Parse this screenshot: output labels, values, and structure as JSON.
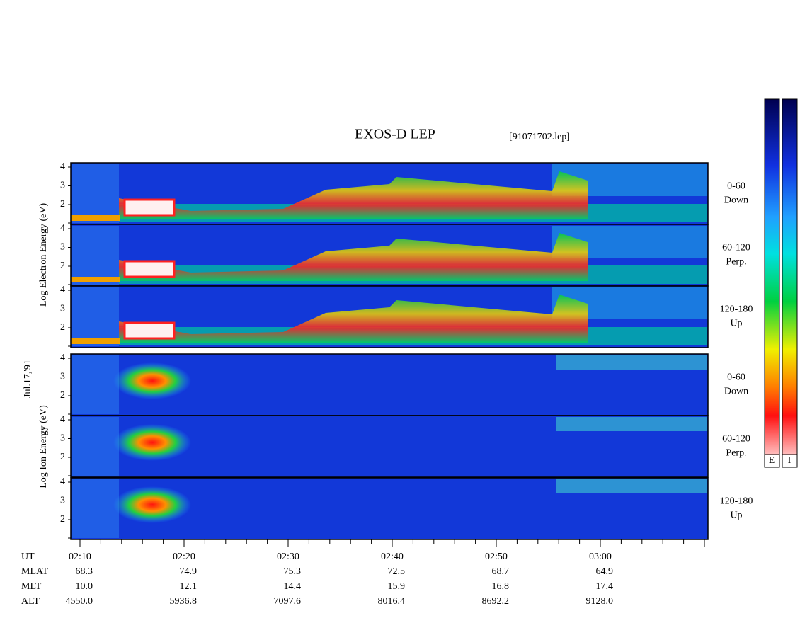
{
  "header": {
    "title": "EXOS-D LEP",
    "file": "[91071702.lep]"
  },
  "date": "Jul.17,'91",
  "electron_axis_label": "Log Electron Energy (eV)",
  "ion_axis_label": "Log Ion Energy (eV)",
  "y_tick_labels": [
    4,
    3,
    2
  ],
  "panels": [
    {
      "angle": "0-60",
      "direction": "Down"
    },
    {
      "angle": "60-120",
      "direction": "Perp."
    },
    {
      "angle": "120-180",
      "direction": "Up"
    },
    {
      "angle": "0-60",
      "direction": "Down"
    },
    {
      "angle": "60-120",
      "direction": "Perp."
    },
    {
      "angle": "120-180",
      "direction": "Up"
    }
  ],
  "ephemeris": {
    "row_labels": [
      "UT",
      "MLAT",
      "MLT",
      "ALT"
    ],
    "columns": [
      [
        "02:10",
        "68.3",
        "10.0",
        "4550.0"
      ],
      [
        "02:20",
        "74.9",
        "12.1",
        "5936.8"
      ],
      [
        "02:30",
        "75.3",
        "14.4",
        "7097.6"
      ],
      [
        "02:40",
        "72.5",
        "15.9",
        "8016.4"
      ],
      [
        "02:50",
        "68.7",
        "16.8",
        "8692.2"
      ],
      [
        "03:00",
        "64.9",
        "17.4",
        "9128.0"
      ]
    ]
  },
  "color_bar_labels": [
    "E",
    "I"
  ]
}
